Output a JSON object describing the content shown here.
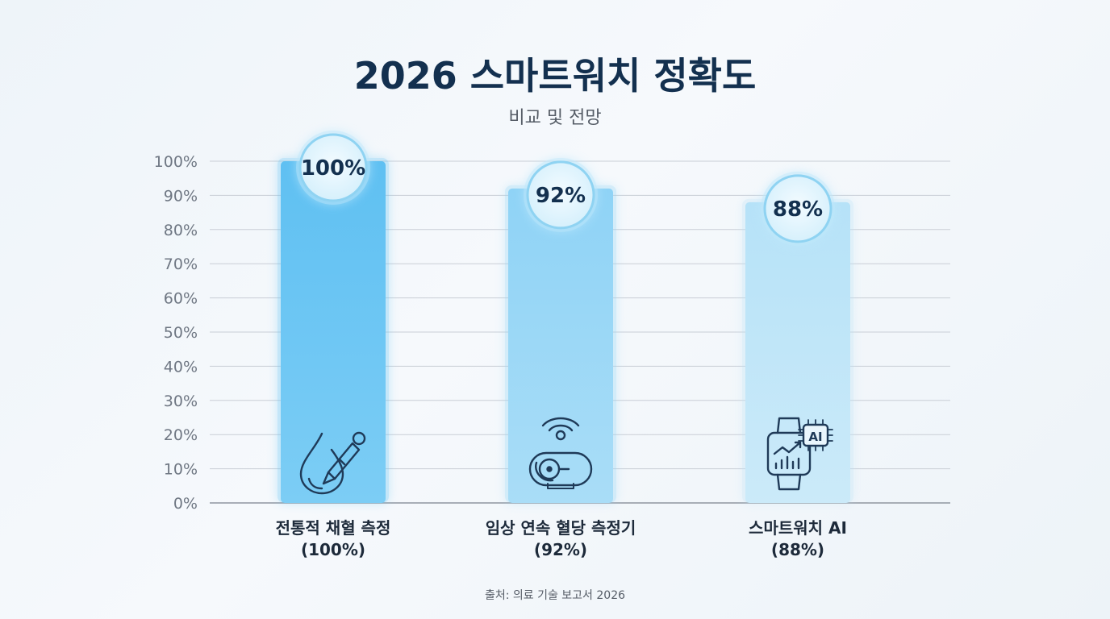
{
  "colors": {
    "title": "#13304f",
    "bar_series": [
      "#6cc6f4",
      "#96d6f6",
      "#bfe4f7"
    ],
    "bubble_fill": "#e3f5fd",
    "bubble_stroke": "#8fd3f2",
    "icon_stroke": "#1f3a58",
    "grid": "#c9ced6"
  },
  "chart_data": {
    "type": "bar",
    "title": "2026 스마트워치 정확도",
    "subtitle": "비교 및 전망",
    "source": "출처: 의료 기술 보고서 2026",
    "categories": [
      "전통적 채혈 측정",
      "임상 연속 혈당 측정기",
      "스마트워치 AI"
    ],
    "category_sublabels": [
      "(100%)",
      "(92%)",
      "(88%)"
    ],
    "values": [
      100,
      92,
      88
    ],
    "value_labels": [
      "100%",
      "92%",
      "88%"
    ],
    "icons": [
      "blood-drop-lancet-icon",
      "cgm-sensor-icon",
      "smartwatch-ai-icon"
    ],
    "icon_text": [
      "",
      "",
      "AI"
    ],
    "ylim": [
      0,
      100
    ],
    "yticks": [
      0,
      10,
      20,
      30,
      40,
      50,
      60,
      70,
      80,
      90,
      100
    ],
    "ytick_labels": [
      "0%",
      "10%",
      "20%",
      "30%",
      "40%",
      "50%",
      "60%",
      "70%",
      "80%",
      "90%",
      "100%"
    ],
    "xlabel": "",
    "ylabel": "",
    "grid": true
  }
}
